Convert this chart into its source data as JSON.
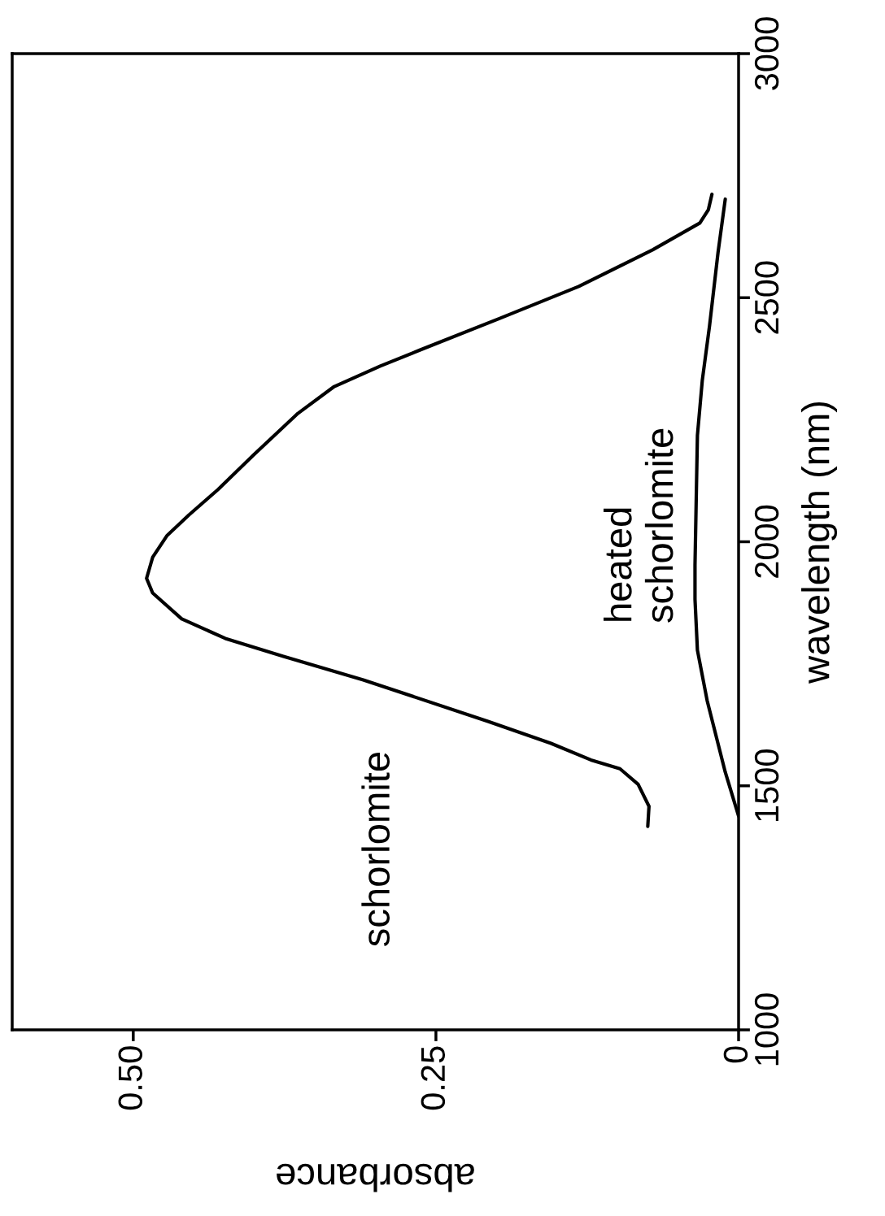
{
  "chart_data": {
    "type": "line",
    "xlabel": "absorbance",
    "ylabel": "wavelength (nm)",
    "xlim": [
      0.6,
      0
    ],
    "xticks": [
      {
        "value": 0.5,
        "label": "0.50"
      },
      0.25,
      0
    ],
    "ylim": [
      1000,
      3000
    ],
    "yticks": [
      1000,
      1500,
      2000,
      2500,
      3000
    ],
    "grid": false,
    "legend": false,
    "marker": "none",
    "line_style": "solid",
    "series": [
      {
        "name": "schorlomite",
        "color": "#000000",
        "x": [
          0.075,
          0.074,
          0.083,
          0.098,
          0.122,
          0.155,
          0.207,
          0.31,
          0.376,
          0.424,
          0.46,
          0.484,
          0.489,
          0.484,
          0.472,
          0.454,
          0.43,
          0.401,
          0.364,
          0.334,
          0.296,
          0.263,
          0.198,
          0.132,
          0.071,
          0.032,
          0.025,
          0.022
        ],
        "values": [
          1417,
          1458,
          1503,
          1535,
          1553,
          1587,
          1632,
          1717,
          1765,
          1802,
          1842,
          1895,
          1925,
          1968,
          2013,
          2055,
          2107,
          2177,
          2263,
          2318,
          2360,
          2393,
          2457,
          2523,
          2598,
          2653,
          2680,
          2712
        ]
      },
      {
        "name": "heated\nschorlomite",
        "color": "#000000",
        "x": [
          0,
          0.011,
          0.026,
          0.034,
          0.036,
          0.036,
          0.034,
          0.03,
          0.024,
          0.017,
          0.011
        ],
        "values": [
          1438,
          1528,
          1675,
          1778,
          1882,
          1952,
          2218,
          2330,
          2442,
          2592,
          2702
        ]
      }
    ]
  }
}
